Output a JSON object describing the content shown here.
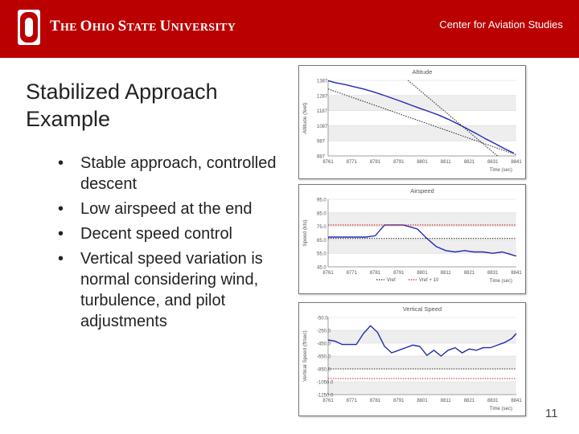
{
  "header": {
    "university_name_parts": [
      "T",
      "HE ",
      "O",
      "HIO ",
      "S",
      "TATE ",
      "U",
      "NIVERSITY"
    ],
    "center_name": "Center for Aviation Studies",
    "brand_color": "#bb0000"
  },
  "slide": {
    "title": "Stabilized Approach Example",
    "bullets": [
      "Stable approach, controlled descent",
      "Low airspeed at the end",
      "Decent speed control",
      "Vertical speed variation is normal considering wind, turbulence, and pilot adjustments"
    ],
    "page_number": "11"
  },
  "chart_data": [
    {
      "type": "line",
      "title": "Altitude",
      "xlabel": "Time (sec)",
      "ylabel": "Altitude (feet)",
      "x_ticks": [
        "8761",
        "8771",
        "8781",
        "8791",
        "8801",
        "8811",
        "8821",
        "8831",
        "8841"
      ],
      "y_ticks": [
        "1387",
        "1287",
        "1187",
        "1087",
        "987",
        "887"
      ],
      "xlim": [
        8761,
        8841
      ],
      "ylim": [
        887,
        1387
      ],
      "grid": true,
      "series": [
        {
          "color": "#1f2bb0",
          "style": "solid",
          "x": [
            8761,
            8764,
            8768,
            8772,
            8776,
            8780,
            8784,
            8788,
            8792,
            8796,
            8800,
            8804,
            8808,
            8812,
            8816,
            8820,
            8824,
            8828,
            8832,
            8836,
            8840
          ],
          "y": [
            1385,
            1372,
            1360,
            1345,
            1330,
            1312,
            1292,
            1270,
            1248,
            1225,
            1202,
            1180,
            1157,
            1130,
            1100,
            1068,
            1035,
            1000,
            968,
            935,
            905
          ]
        },
        {
          "color": "#333333",
          "style": "dotted",
          "x": [
            8761,
            8841
          ],
          "y": [
            1330,
            895
          ]
        },
        {
          "color": "#333333",
          "style": "dotted",
          "x": [
            8795,
            8833
          ],
          "y": [
            1387,
            887
          ]
        }
      ]
    },
    {
      "type": "line",
      "title": "Airspeed",
      "xlabel": "Time (sec)",
      "ylabel": "Speed (kts)",
      "x_ticks": [
        "8761",
        "8771",
        "8781",
        "8791",
        "8801",
        "8811",
        "8821",
        "8831",
        "8841"
      ],
      "y_ticks": [
        "95.0",
        "85.0",
        "75.0",
        "65.0",
        "55.0",
        "45.0"
      ],
      "xlim": [
        8761,
        8841
      ],
      "ylim": [
        45,
        95
      ],
      "grid": true,
      "legend": [
        "Vref",
        "Vref + 10"
      ],
      "legend_position": "bottom",
      "series": [
        {
          "name": "",
          "color": "#1f2bb0",
          "style": "solid",
          "x": [
            8761,
            8765,
            8769,
            8773,
            8777,
            8781,
            8785,
            8789,
            8793,
            8795,
            8799,
            8803,
            8807,
            8811,
            8815,
            8819,
            8823,
            8827,
            8831,
            8835,
            8839,
            8841
          ],
          "y": [
            67,
            67,
            67,
            67,
            67,
            68,
            76,
            76,
            76,
            75,
            73,
            66,
            60,
            57,
            56,
            57,
            56,
            56,
            55,
            56,
            54,
            53
          ]
        },
        {
          "name": "Vref",
          "color": "#333333",
          "style": "dotted",
          "x": [
            8761,
            8841
          ],
          "y": [
            66,
            66
          ]
        },
        {
          "name": "Vref + 10",
          "color": "#cc2222",
          "style": "dotted",
          "x": [
            8761,
            8841
          ],
          "y": [
            76,
            76
          ]
        }
      ]
    },
    {
      "type": "line",
      "title": "Vertical Speed",
      "xlabel": "Time (sec)",
      "ylabel": "Vertical Speed (ft/sec)",
      "x_ticks": [
        "8761",
        "8771",
        "8781",
        "8791",
        "8801",
        "8811",
        "8821",
        "8831",
        "8841"
      ],
      "y_ticks": [
        "-50.0",
        "-250.0",
        "-450.0",
        "-650.0",
        "-850.0",
        "-1050.0",
        "-1250.0"
      ],
      "xlim": [
        8761,
        8841
      ],
      "ylim": [
        -1250,
        -50
      ],
      "grid": true,
      "series": [
        {
          "color": "#1f2bb0",
          "style": "solid",
          "x": [
            8761,
            8764,
            8767,
            8770,
            8773,
            8776,
            8779,
            8782,
            8785,
            8788,
            8791,
            8794,
            8797,
            8800,
            8803,
            8806,
            8809,
            8812,
            8815,
            8818,
            8821,
            8824,
            8827,
            8830,
            8833,
            8836,
            8839,
            8841
          ],
          "y": [
            -400,
            -420,
            -470,
            -470,
            -470,
            -300,
            -180,
            -280,
            -500,
            -600,
            -560,
            -520,
            -480,
            -500,
            -640,
            -560,
            -650,
            -560,
            -520,
            -600,
            -540,
            -560,
            -520,
            -520,
            -480,
            -440,
            -380,
            -300
          ]
        },
        {
          "color": "#333333",
          "style": "dotted",
          "x": [
            8761,
            8841
          ],
          "y": [
            -850,
            -850
          ]
        },
        {
          "color": "#cc2222",
          "style": "dotted",
          "x": [
            8761,
            8841
          ],
          "y": [
            -1000,
            -1000
          ]
        }
      ]
    }
  ]
}
